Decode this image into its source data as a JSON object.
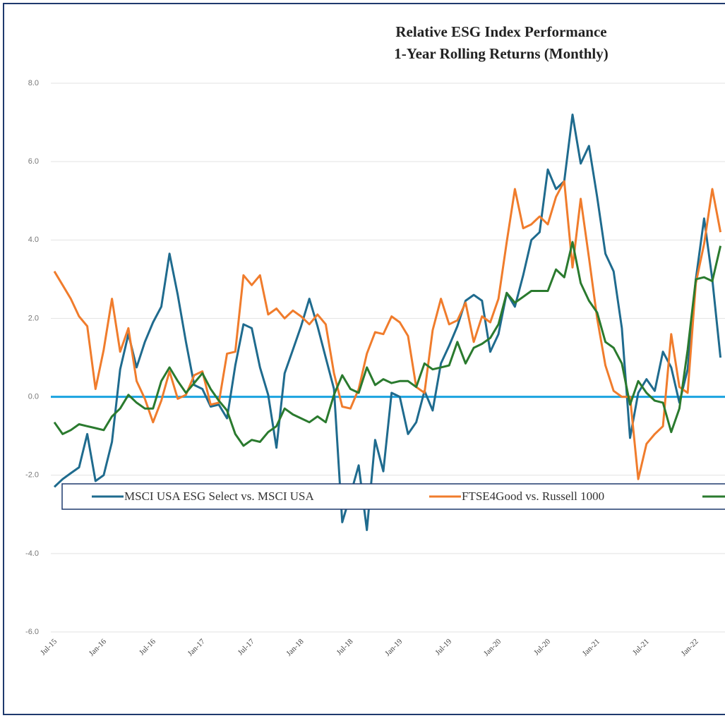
{
  "chart_data": {
    "type": "line",
    "title": [
      "Relative ESG Index Performance",
      "1-Year Rolling Returns (Monthly)"
    ],
    "categories": [
      "Jul-15",
      null,
      null,
      null,
      null,
      null,
      "Jan-16",
      null,
      null,
      null,
      null,
      null,
      "Jul-16",
      null,
      null,
      null,
      null,
      null,
      "Jan-17",
      null,
      null,
      null,
      null,
      null,
      "Jul-17",
      null,
      null,
      null,
      null,
      null,
      "Jan-18",
      null,
      null,
      null,
      null,
      null,
      "Jul-18",
      null,
      null,
      null,
      null,
      null,
      "Jan-19",
      null,
      null,
      null,
      null,
      null,
      "Jul-19",
      null,
      null,
      null,
      null,
      null,
      "Jan-20",
      null,
      null,
      null,
      null,
      null,
      "Jul-20",
      null,
      null,
      null,
      null,
      null,
      "Jan-21",
      null,
      null,
      null,
      null,
      null,
      "Jul-21",
      null,
      null,
      null,
      null,
      null,
      "Jan-22",
      null,
      null,
      null
    ],
    "series": [
      {
        "name": "MSCI USA ESG Select vs. MSCI USA",
        "color": "#1f6b8e",
        "values": [
          -2.3,
          -2.1,
          -1.95,
          -1.8,
          -0.95,
          -2.15,
          -2.0,
          -1.15,
          0.7,
          1.6,
          0.75,
          1.4,
          1.9,
          2.3,
          3.65,
          2.6,
          1.4,
          0.3,
          0.2,
          -0.25,
          -0.2,
          -0.55,
          0.8,
          1.85,
          1.75,
          0.75,
          0.05,
          -1.3,
          0.6,
          1.2,
          1.8,
          2.5,
          1.8,
          1.0,
          0.2,
          -3.2,
          -2.5,
          -1.75,
          -3.4,
          -1.1,
          -1.9,
          0.1,
          0.0,
          -0.95,
          -0.65,
          0.15,
          -0.35,
          0.85,
          1.3,
          1.8,
          2.45,
          2.6,
          2.45,
          1.15,
          1.6,
          2.65,
          2.3,
          3.1,
          4.0,
          4.2,
          5.8,
          5.3,
          5.5,
          7.2,
          5.95,
          6.4,
          5.1,
          3.65,
          3.2,
          1.75,
          -1.05,
          0.1,
          0.45,
          0.15,
          1.15,
          0.75,
          -0.15,
          0.7,
          3.0,
          4.55,
          3.0,
          1.0
        ]
      },
      {
        "name": "FTSE4Good vs. Russell 1000",
        "color": "#f07c2c",
        "values": [
          3.2,
          2.85,
          2.5,
          2.05,
          1.8,
          0.2,
          1.2,
          2.5,
          1.15,
          1.75,
          0.4,
          -0.05,
          -0.65,
          -0.1,
          0.65,
          -0.05,
          0.05,
          0.55,
          0.65,
          -0.2,
          -0.15,
          1.1,
          1.15,
          3.1,
          2.85,
          3.1,
          2.1,
          2.25,
          2.0,
          2.2,
          2.05,
          1.85,
          2.1,
          1.85,
          0.6,
          -0.25,
          -0.3,
          0.2,
          1.1,
          1.65,
          1.6,
          2.05,
          1.9,
          1.55,
          0.25,
          0.1,
          1.7,
          2.5,
          1.85,
          1.95,
          2.4,
          1.4,
          2.05,
          1.9,
          2.5,
          3.95,
          5.3,
          4.3,
          4.4,
          4.6,
          4.4,
          5.1,
          5.5,
          3.3,
          5.05,
          3.55,
          2.0,
          0.8,
          0.15,
          0.0,
          0.0,
          -2.1,
          -1.2,
          -0.95,
          -0.75,
          1.6,
          0.25,
          0.1,
          2.9,
          3.9,
          5.3,
          4.2
        ]
      },
      {
        "color": "#2a7a2e",
        "values": [
          -0.65,
          -0.95,
          -0.85,
          -0.7,
          -0.75,
          -0.8,
          -0.85,
          -0.5,
          -0.3,
          0.05,
          -0.15,
          -0.3,
          -0.3,
          0.4,
          0.75,
          0.4,
          0.1,
          0.35,
          0.6,
          0.2,
          -0.1,
          -0.35,
          -0.95,
          -1.25,
          -1.1,
          -1.15,
          -0.9,
          -0.75,
          -0.3,
          -0.45,
          -0.55,
          -0.65,
          -0.5,
          -0.65,
          0.05,
          0.55,
          0.2,
          0.1,
          0.75,
          0.3,
          0.45,
          0.35,
          0.4,
          0.4,
          0.25,
          0.85,
          0.7,
          0.75,
          0.8,
          1.4,
          0.85,
          1.25,
          1.35,
          1.5,
          1.85,
          2.65,
          2.4,
          2.55,
          2.7,
          2.7,
          2.7,
          3.25,
          3.05,
          3.95,
          2.9,
          2.45,
          2.15,
          1.4,
          1.25,
          0.85,
          -0.2,
          0.4,
          0.1,
          -0.1,
          -0.15,
          -0.9,
          -0.3,
          1.2,
          3.0,
          3.05,
          2.95,
          3.85
        ]
      }
    ],
    "ylim": [
      -6,
      8
    ],
    "yticks": [
      {
        "value": -6,
        "label": "-6.0"
      },
      {
        "value": -4,
        "label": "-4.0"
      },
      {
        "value": -2,
        "label": "-2.0"
      },
      {
        "value": 0,
        "label": "0.0"
      },
      {
        "value": 2,
        "label": "2.0"
      },
      {
        "value": 4,
        "label": "4.0"
      },
      {
        "value": 6,
        "label": "6.0"
      },
      {
        "value": 8,
        "label": "8.0"
      }
    ],
    "grid": true,
    "zero_line_color": "#1aa3e0",
    "legend": "bottom"
  }
}
